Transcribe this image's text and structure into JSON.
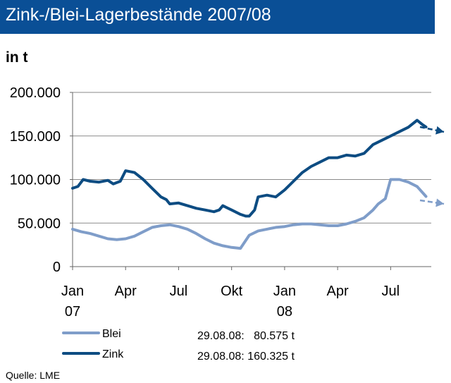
{
  "header": {
    "title": "Zink-/Blei-Lagerbestände 2007/08"
  },
  "unit_label": "in t",
  "source": "Quelle: LME",
  "legend": {
    "items": [
      {
        "label": "Blei",
        "color": "#7f9dc9",
        "note": "29.08.08:   80.575 t"
      },
      {
        "label": "Zink",
        "color": "#0d4c82",
        "note": "29.08.08: 160.325 t"
      }
    ]
  },
  "chart_data": {
    "type": "line",
    "title": "Zink-/Blei-Lagerbestände 2007/08",
    "ylabel": "in t",
    "ylim": [
      0,
      200000
    ],
    "y_ticks": [
      0,
      50000,
      100000,
      150000,
      200000
    ],
    "y_tick_labels": [
      "0",
      "50.000",
      "100.000",
      "150.000",
      "200.000"
    ],
    "x_range": [
      0,
      20.3
    ],
    "x_ticks": [
      {
        "x": 0,
        "line1": "Jan",
        "line2": "07"
      },
      {
        "x": 3,
        "line1": "Apr",
        "line2": ""
      },
      {
        "x": 6,
        "line1": "Jul",
        "line2": ""
      },
      {
        "x": 9,
        "line1": "Okt",
        "line2": ""
      },
      {
        "x": 12,
        "line1": "Jan",
        "line2": "08"
      },
      {
        "x": 15,
        "line1": "Apr",
        "line2": ""
      },
      {
        "x": 18,
        "line1": "Jul",
        "line2": ""
      }
    ],
    "series": [
      {
        "name": "Blei",
        "color": "#7f9dc9",
        "x": [
          0,
          0.5,
          1,
          1.5,
          2,
          2.5,
          3,
          3.5,
          4,
          4.5,
          5,
          5.5,
          6,
          6.5,
          7,
          7.5,
          8,
          8.5,
          9,
          9.5,
          10,
          10.5,
          11,
          11.5,
          12,
          12.5,
          13,
          13.5,
          14,
          14.5,
          15,
          15.5,
          16,
          16.5,
          17,
          17.3,
          17.7,
          18,
          18.5,
          19,
          19.5,
          20
        ],
        "y": [
          43000,
          40000,
          38000,
          35000,
          32000,
          31000,
          32000,
          35000,
          40000,
          45000,
          47000,
          48000,
          46000,
          43000,
          38000,
          32000,
          27000,
          24000,
          22000,
          21000,
          36000,
          41000,
          43000,
          45000,
          46000,
          48000,
          49000,
          49000,
          48000,
          47000,
          47000,
          49000,
          52000,
          56000,
          65000,
          72000,
          78000,
          100000,
          100000,
          97000,
          92000,
          80575
        ]
      },
      {
        "name": "Zink",
        "color": "#0d4c82",
        "x": [
          0,
          0.3,
          0.6,
          1,
          1.5,
          2,
          2.3,
          2.7,
          3,
          3.5,
          4,
          4.5,
          5,
          5.3,
          5.5,
          6,
          6.5,
          7,
          7.5,
          8,
          8.3,
          8.5,
          8.8,
          9,
          9.5,
          9.8,
          10,
          10.3,
          10.5,
          11,
          11.5,
          12,
          12.5,
          13,
          13.5,
          14,
          14.5,
          15,
          15.5,
          16,
          16.5,
          17,
          17.5,
          18,
          18.5,
          19,
          19.5,
          19.8,
          20
        ],
        "y": [
          90000,
          92000,
          100000,
          98000,
          97000,
          99000,
          95000,
          98000,
          110000,
          108000,
          100000,
          90000,
          80000,
          77000,
          72000,
          73000,
          70000,
          67000,
          65000,
          63000,
          65000,
          70000,
          67000,
          65000,
          60000,
          58000,
          58000,
          65000,
          80000,
          82000,
          80000,
          88000,
          98000,
          108000,
          115000,
          120000,
          125000,
          125000,
          128000,
          127000,
          130000,
          140000,
          145000,
          150000,
          155000,
          160000,
          168000,
          163000,
          160325
        ]
      }
    ]
  }
}
